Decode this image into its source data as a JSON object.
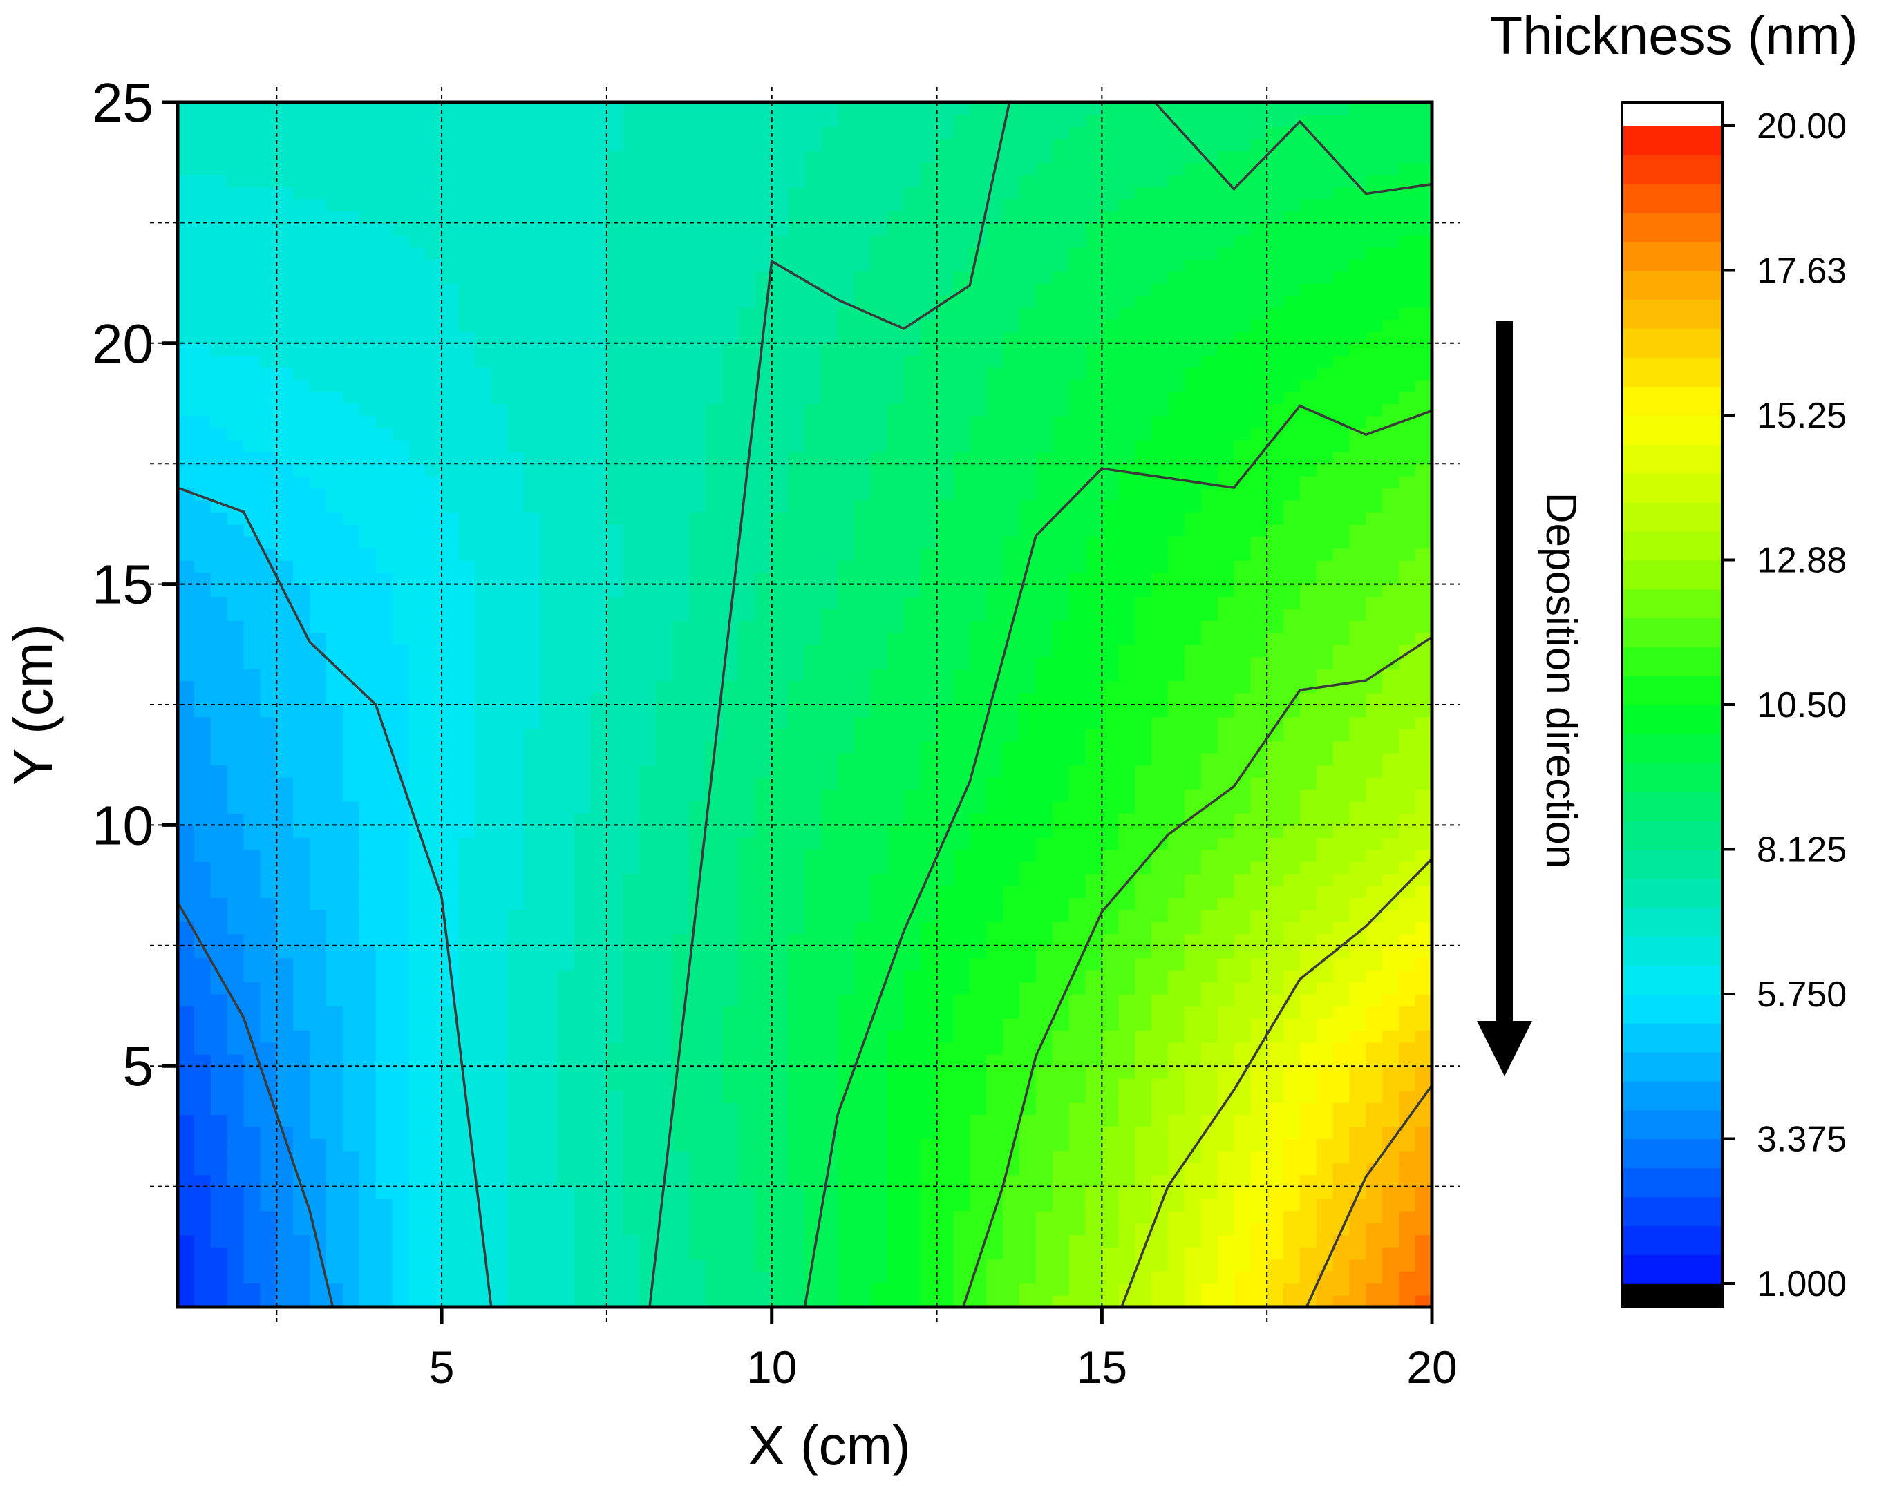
{
  "chart_data": {
    "type": "heatmap",
    "subtype": "filled-contour",
    "xlabel": "X (cm)",
    "ylabel": "Y (cm)",
    "xlim": [
      1,
      20
    ],
    "ylim": [
      0,
      25
    ],
    "x_ticks": [
      5,
      10,
      15,
      20
    ],
    "y_ticks": [
      5,
      10,
      15,
      20,
      25
    ],
    "grid": true,
    "grid_x": [
      2.5,
      5,
      7.5,
      10,
      12.5,
      15,
      17.5
    ],
    "grid_y": [
      2.5,
      5,
      7.5,
      10,
      12.5,
      15,
      17.5,
      20,
      22.5
    ],
    "colorbar": {
      "title": "Thickness (nm)",
      "min": 1.0,
      "max": 20.0,
      "tick_values": [
        20.0,
        17.625,
        15.25,
        12.875,
        10.5,
        8.125,
        5.75,
        3.375,
        1.0
      ],
      "tick_labels": [
        "20.00",
        "17.63",
        "15.25",
        "12.88",
        "10.50",
        "8.125",
        "5.750",
        "3.375",
        "1.000"
      ],
      "colors": [
        "#0010ff",
        "#0080ff",
        "#00e8ff",
        "#00e890",
        "#00ff20",
        "#a0ff00",
        "#ffff00",
        "#ffa000",
        "#ff1800"
      ],
      "over_color": "#ffffff",
      "under_color": "#000000"
    },
    "thickness_grid": {
      "x": [
        1,
        5,
        10,
        15,
        20
      ],
      "y": [
        0,
        5,
        10,
        15,
        20,
        25
      ],
      "z": [
        [
          1.5,
          6.2,
          8.6,
          13.0,
          18.8
        ],
        [
          2.5,
          6.2,
          9.0,
          12.0,
          16.8
        ],
        [
          3.8,
          6.0,
          8.8,
          10.8,
          13.6
        ],
        [
          4.6,
          6.0,
          8.2,
          10.2,
          12.2
        ],
        [
          6.2,
          6.6,
          7.8,
          9.6,
          10.8
        ],
        [
          6.9,
          6.9,
          7.4,
          8.6,
          9.2
        ]
      ]
    },
    "contour_lines": [
      {
        "level": 3.2,
        "points": [
          [
            1,
            8.4
          ],
          [
            2,
            6.0
          ],
          [
            3,
            2.0
          ],
          [
            3.35,
            0
          ]
        ]
      },
      {
        "level": 5.75,
        "points": [
          [
            1,
            17.0
          ],
          [
            2,
            16.5
          ],
          [
            3,
            13.8
          ],
          [
            4,
            12.5
          ],
          [
            5,
            8.5
          ],
          [
            5.75,
            0
          ]
        ]
      },
      {
        "level": 8.125,
        "points": [
          [
            8.15,
            0
          ],
          [
            10,
            21.7
          ],
          [
            11,
            20.9
          ],
          [
            12,
            20.3
          ],
          [
            13,
            21.2
          ],
          [
            13.6,
            25
          ]
        ]
      },
      {
        "level": 10.5,
        "points": [
          [
            10.5,
            0
          ],
          [
            11,
            4.0
          ],
          [
            12,
            7.8
          ],
          [
            13,
            10.9
          ],
          [
            14,
            16.0
          ],
          [
            15,
            17.4
          ],
          [
            16,
            17.2
          ],
          [
            17,
            17.0
          ],
          [
            18,
            18.7
          ],
          [
            19,
            18.1
          ],
          [
            20,
            18.6
          ]
        ]
      },
      {
        "level": 8.9,
        "points": [
          [
            15.8,
            25
          ],
          [
            17,
            23.2
          ],
          [
            18,
            24.6
          ],
          [
            19,
            23.1
          ],
          [
            20,
            23.3
          ]
        ]
      },
      {
        "level": 12.88,
        "points": [
          [
            12.9,
            0
          ],
          [
            13.5,
            2.5
          ],
          [
            14,
            5.2
          ],
          [
            15,
            8.2
          ],
          [
            16,
            9.8
          ],
          [
            17,
            10.8
          ],
          [
            18,
            12.8
          ],
          [
            19,
            13.0
          ],
          [
            20,
            13.9
          ]
        ]
      },
      {
        "level": 15.25,
        "points": [
          [
            15.3,
            0
          ],
          [
            16,
            2.5
          ],
          [
            17,
            4.5
          ],
          [
            18,
            6.8
          ],
          [
            19,
            7.9
          ],
          [
            20,
            9.3
          ]
        ]
      },
      {
        "level": 17.63,
        "points": [
          [
            18.1,
            0
          ],
          [
            19,
            2.7
          ],
          [
            20,
            4.6
          ]
        ]
      }
    ],
    "annotations": [
      {
        "text": "Deposition direction",
        "arrow": "down"
      }
    ]
  }
}
